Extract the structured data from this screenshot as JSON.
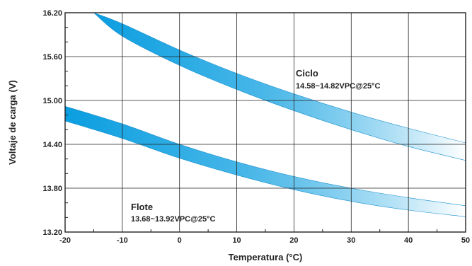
{
  "chart_data": {
    "type": "area",
    "title": "",
    "xlabel": "Temperatura (°C)",
    "ylabel": "Voltaje de carga (V)",
    "xlim": [
      -20,
      50
    ],
    "ylim": [
      13.2,
      16.2
    ],
    "x_ticks": [
      -20,
      -10,
      0,
      10,
      20,
      30,
      40,
      50
    ],
    "x_tick_labels": [
      "-20",
      "-10",
      "0",
      "10",
      "20",
      "30",
      "40",
      "50"
    ],
    "y_ticks": [
      13.2,
      13.8,
      14.4,
      15.0,
      15.6,
      16.2
    ],
    "y_tick_labels": [
      "13.20",
      "13.80",
      "14.40",
      "15.00",
      "15.60",
      "16.20"
    ],
    "grid": true,
    "colors": {
      "band_dark": "#0a9ee0",
      "band_light": "#ffffff",
      "grid": "#222222"
    },
    "bands": [
      {
        "name": "Ciclo",
        "spec": "14.58~14.82VPC@25°C",
        "x": [
          -15,
          -10,
          0,
          10,
          20,
          30,
          40,
          50
        ],
        "upper": [
          16.2,
          16.05,
          15.69,
          15.37,
          15.09,
          14.84,
          14.62,
          14.42
        ],
        "lower": [
          16.2,
          15.88,
          15.48,
          15.15,
          14.86,
          14.6,
          14.37,
          14.18
        ]
      },
      {
        "name": "Flote",
        "spec": "13.68~13.92VPC@25°C",
        "x": [
          -20,
          -10,
          0,
          10,
          20,
          30,
          40,
          50
        ],
        "upper": [
          14.92,
          14.68,
          14.4,
          14.16,
          13.96,
          13.8,
          13.67,
          13.56
        ],
        "lower": [
          14.72,
          14.48,
          14.21,
          13.98,
          13.78,
          13.62,
          13.5,
          13.41
        ]
      }
    ]
  }
}
